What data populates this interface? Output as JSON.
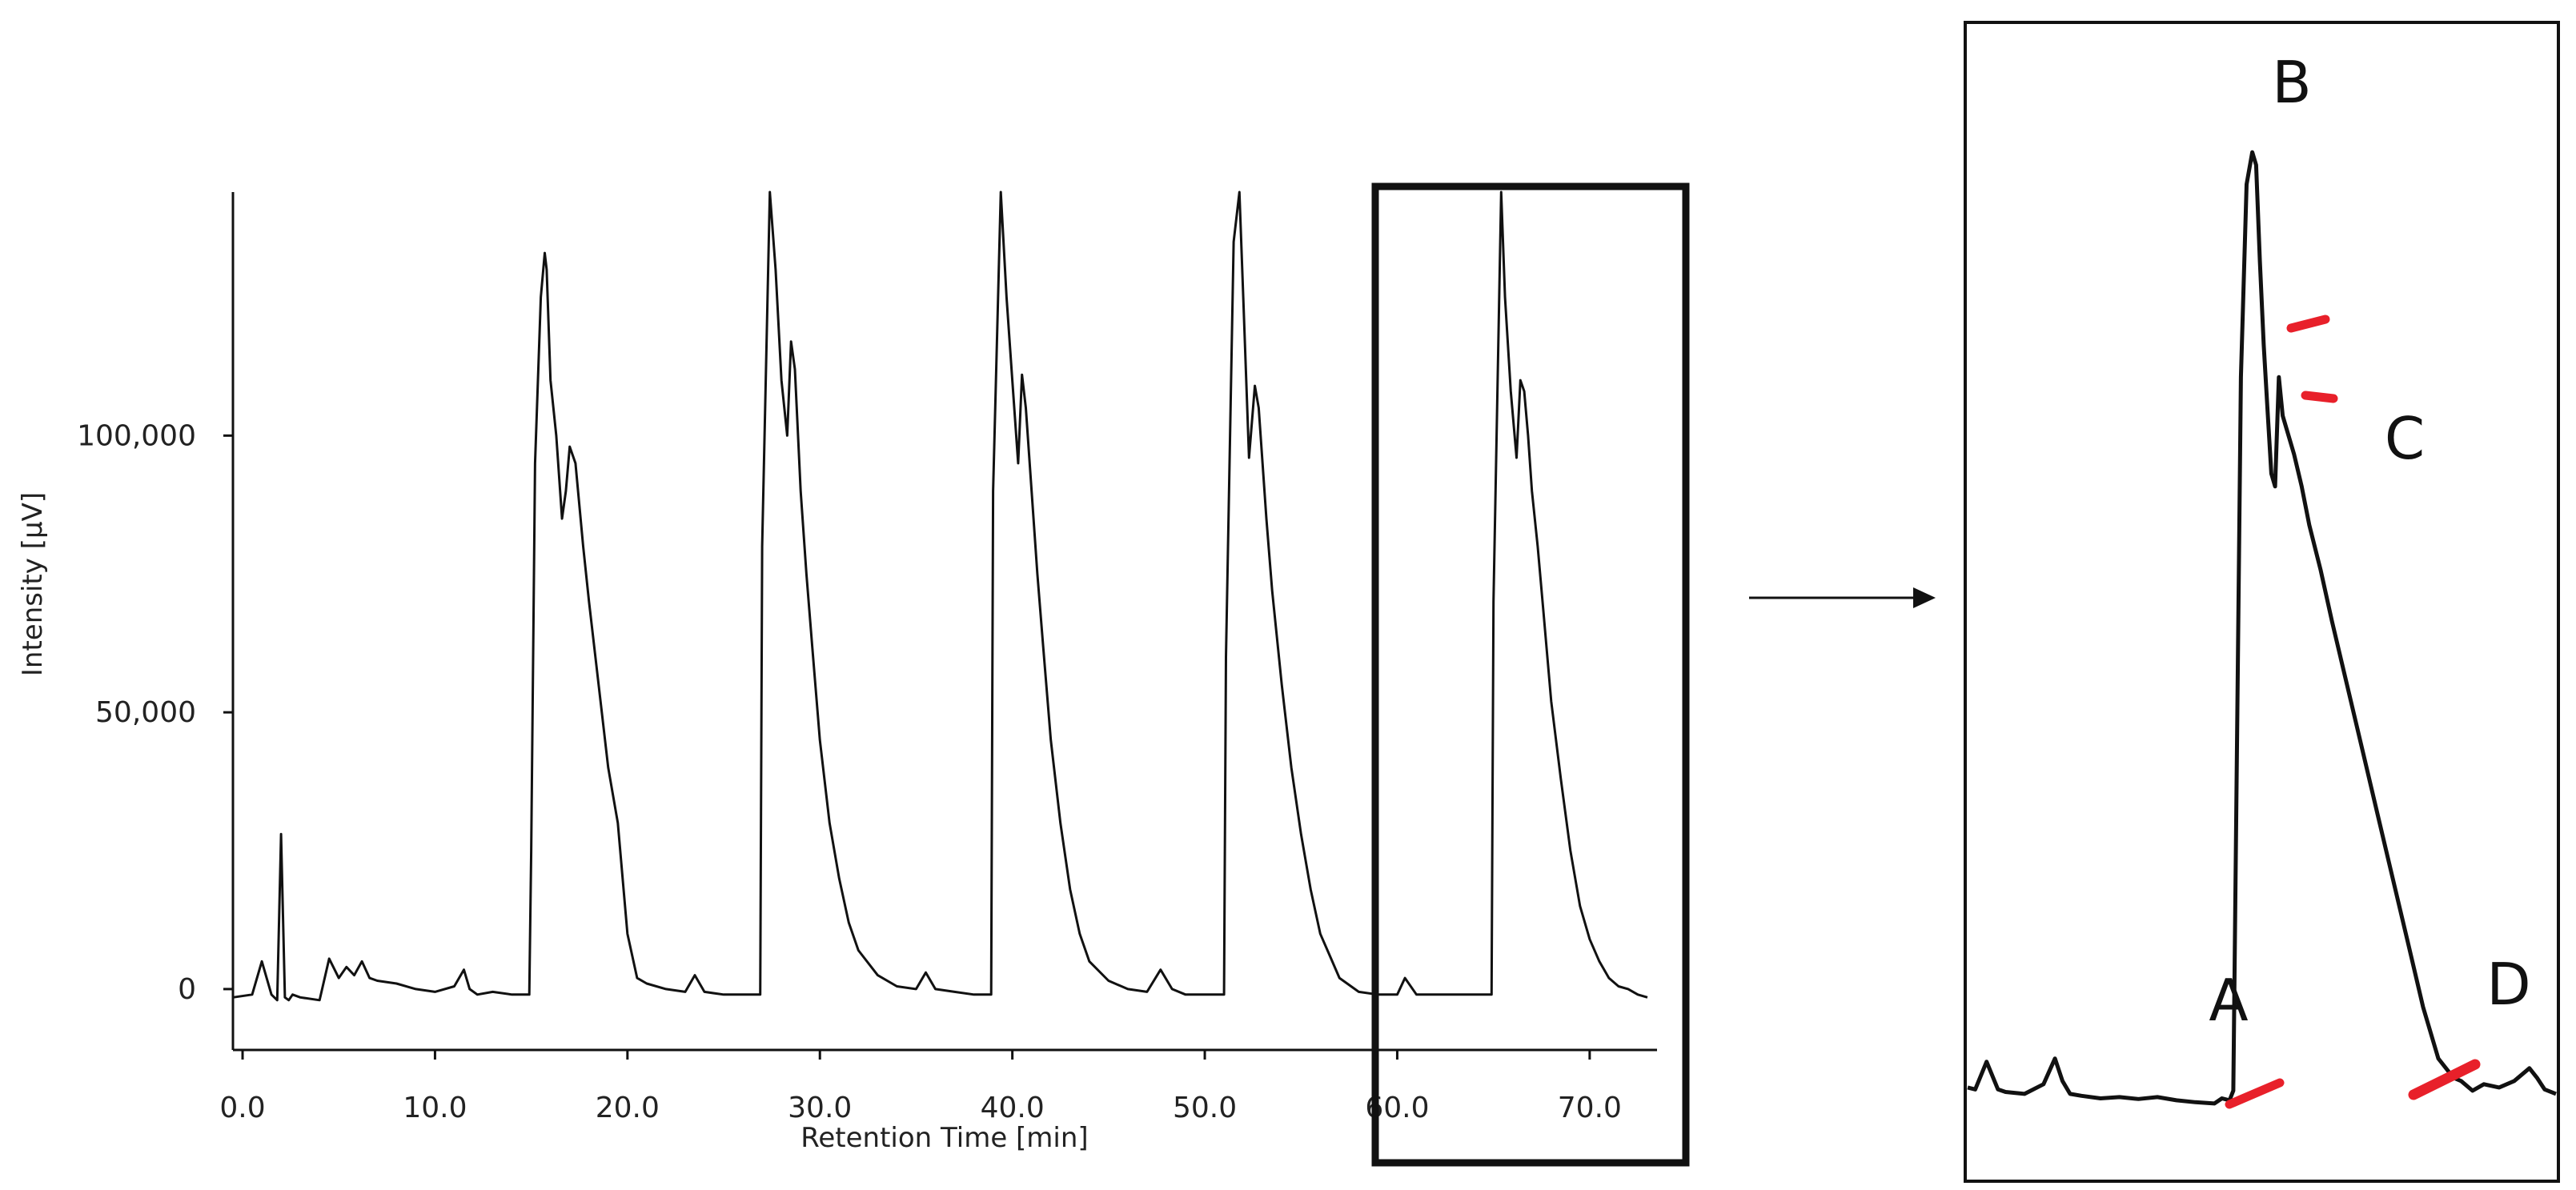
{
  "chart_data": [
    {
      "type": "line",
      "title": "",
      "xlabel": "Retention Time [min]",
      "ylabel": "Intensity [μV]",
      "xlim": [
        -0.5,
        73.5
      ],
      "ylim": [
        -11000,
        144000
      ],
      "x_ticks": [
        0,
        10,
        20,
        30,
        40,
        50,
        60,
        70
      ],
      "x_tick_labels": [
        "0.0",
        "10.0",
        "20.0",
        "30.0",
        "40.0",
        "50.0",
        "60.0",
        "70.0"
      ],
      "y_ticks": [
        0,
        50000,
        100000
      ],
      "y_tick_labels": [
        "0",
        "50,000",
        "100,000"
      ],
      "grid": false,
      "series": [
        {
          "name": "",
          "x": [
            -0.5,
            0.5,
            1.0,
            1.5,
            1.8,
            2.0,
            2.2,
            2.4,
            2.6,
            3.0,
            4.0,
            4.5,
            5.0,
            5.4,
            5.8,
            6.2,
            6.6,
            7.0,
            8.0,
            9.0,
            10.0,
            11.0,
            11.5,
            11.8,
            12.2,
            13.0,
            14.0,
            14.9,
            15.0,
            15.2,
            15.5,
            15.7,
            15.8,
            16.0,
            16.3,
            16.6,
            16.8,
            17.0,
            17.3,
            17.7,
            18.0,
            18.5,
            19.0,
            19.5,
            20.0,
            20.5,
            21.0,
            22.0,
            23.0,
            23.5,
            24.0,
            25.0,
            26.0,
            26.9,
            27.0,
            27.4,
            27.7,
            28.0,
            28.3,
            28.5,
            28.7,
            29.0,
            29.3,
            29.6,
            30.0,
            30.5,
            31.0,
            31.5,
            32.0,
            33.0,
            34.0,
            35.0,
            35.5,
            36.0,
            37.0,
            38.0,
            38.9,
            39.0,
            39.4,
            39.7,
            40.0,
            40.3,
            40.5,
            40.7,
            41.0,
            41.3,
            41.6,
            42.0,
            42.5,
            43.0,
            43.5,
            44.0,
            45.0,
            46.0,
            47.0,
            47.7,
            48.3,
            49.0,
            50.0,
            51.0,
            51.1,
            51.5,
            51.8,
            52.0,
            52.3,
            52.6,
            52.8,
            53.0,
            53.2,
            53.5,
            54.0,
            54.5,
            55.0,
            55.5,
            56.0,
            56.5,
            57.0,
            58.0,
            59.0,
            60.0,
            60.4,
            61.0,
            62.0,
            63.0,
            64.0,
            64.9,
            65.0,
            65.4,
            65.6,
            65.9,
            66.2,
            66.4,
            66.6,
            66.8,
            67.0,
            67.3,
            67.6,
            68.0,
            68.5,
            69.0,
            69.5,
            70.0,
            70.5,
            71.0,
            71.5,
            72.0,
            72.5,
            73.0
          ],
          "y": [
            -1500,
            -1000,
            5000,
            -1000,
            -2000,
            28000,
            -1500,
            -2000,
            -1000,
            -1500,
            -2000,
            5500,
            2000,
            4000,
            2500,
            5000,
            2000,
            1500,
            1000,
            0,
            -500,
            500,
            3500,
            0,
            -1000,
            -500,
            -1000,
            -1000,
            25000,
            95000,
            125000,
            133000,
            130000,
            110000,
            100000,
            85000,
            90000,
            98000,
            95000,
            80000,
            70000,
            55000,
            40000,
            30000,
            10000,
            2000,
            1000,
            0,
            -500,
            2500,
            -500,
            -1000,
            -1000,
            -1000,
            80000,
            144000,
            130000,
            110000,
            100000,
            117000,
            112000,
            90000,
            75000,
            62000,
            45000,
            30000,
            20000,
            12000,
            7000,
            2500,
            500,
            0,
            3000,
            0,
            -500,
            -1000,
            -1000,
            90000,
            144000,
            125000,
            110000,
            95000,
            111000,
            105000,
            90000,
            75000,
            62000,
            45000,
            30000,
            18000,
            10000,
            5000,
            1500,
            0,
            -500,
            3500,
            0,
            -1000,
            -1000,
            -1000,
            60000,
            135000,
            144000,
            125000,
            96000,
            109000,
            105000,
            95000,
            85000,
            72000,
            55000,
            40000,
            28000,
            18000,
            10000,
            6000,
            2000,
            -500,
            -1000,
            -1000,
            2000,
            -1000,
            -1000,
            -1000,
            -1000,
            -1000,
            70000,
            144000,
            125000,
            108000,
            96000,
            110000,
            108000,
            100000,
            90000,
            80000,
            68000,
            52000,
            38000,
            25000,
            15000,
            9000,
            5000,
            2000,
            500,
            0,
            -1000,
            -1500
          ]
        }
      ]
    },
    {
      "type": "line",
      "title": "",
      "xlabel": "",
      "ylabel": "",
      "grid": false,
      "annotations": [
        "A",
        "B",
        "C",
        "D"
      ],
      "series": [
        {
          "name": "",
          "x": [
            58.0,
            58.2,
            58.5,
            58.8,
            59.0,
            59.5,
            60.0,
            60.3,
            60.5,
            60.7,
            61.0,
            61.5,
            62.0,
            62.5,
            63.0,
            63.5,
            64.0,
            64.5,
            64.7,
            64.9,
            65.0,
            65.2,
            65.35,
            65.5,
            65.6,
            65.7,
            65.8,
            65.9,
            66.0,
            66.1,
            66.2,
            66.3,
            66.4,
            66.6,
            66.8,
            67.0,
            67.3,
            67.6,
            68.0,
            68.4,
            68.8,
            69.2,
            69.6,
            70.0,
            70.4,
            70.8,
            71.0,
            71.3,
            71.6,
            72.0,
            72.4,
            72.8,
            73.0,
            73.2,
            73.5
          ],
          "y": [
            -500,
            -800,
            3500,
            -800,
            -1200,
            -1500,
            0,
            4000,
            500,
            -1500,
            -1800,
            -2200,
            -2000,
            -2300,
            -2000,
            -2500,
            -2800,
            -3000,
            -2200,
            -2500,
            -1000,
            110000,
            140000,
            145000,
            143000,
            128000,
            115000,
            105000,
            95000,
            93000,
            110000,
            104000,
            102000,
            98000,
            93000,
            87000,
            80000,
            72000,
            62000,
            52000,
            42000,
            32000,
            22000,
            12000,
            4000,
            1000,
            500,
            -1000,
            0,
            -500,
            500,
            2500,
            1000,
            -800,
            -1500
          ]
        }
      ]
    }
  ]
}
